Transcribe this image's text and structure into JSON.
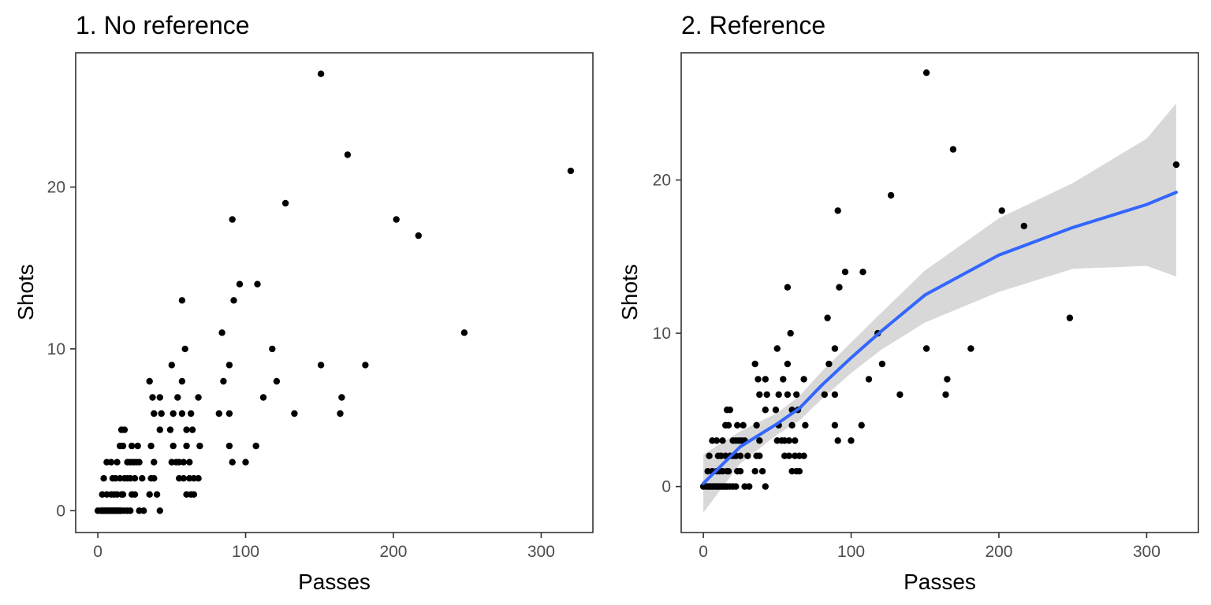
{
  "chart_data": [
    {
      "type": "scatter",
      "title": "1. No reference",
      "xlabel": "Passes",
      "ylabel": "Shots",
      "xlim": [
        -15,
        335
      ],
      "ylim": [
        -1.35,
        28.3
      ],
      "xticks": [
        0,
        100,
        200,
        300
      ],
      "yticks": [
        0,
        10,
        20
      ],
      "grid": false,
      "colors": {
        "points": "#000000",
        "panel_border": "#333333",
        "ticks": "#4d4d4d"
      },
      "points": [
        [
          0,
          0
        ],
        [
          2,
          0
        ],
        [
          3,
          0
        ],
        [
          4,
          0
        ],
        [
          5,
          0
        ],
        [
          6,
          0
        ],
        [
          7,
          0
        ],
        [
          8,
          0
        ],
        [
          9,
          0
        ],
        [
          10,
          0
        ],
        [
          11,
          0
        ],
        [
          12,
          0
        ],
        [
          13,
          0
        ],
        [
          14,
          0
        ],
        [
          15,
          0
        ],
        [
          16,
          0
        ],
        [
          18,
          0
        ],
        [
          20,
          0
        ],
        [
          22,
          0
        ],
        [
          28,
          0
        ],
        [
          31,
          0
        ],
        [
          42,
          0
        ],
        [
          3,
          1
        ],
        [
          6,
          1
        ],
        [
          9,
          1
        ],
        [
          11,
          1
        ],
        [
          13,
          1
        ],
        [
          16,
          1
        ],
        [
          17,
          1
        ],
        [
          23,
          1
        ],
        [
          25,
          1
        ],
        [
          35,
          1
        ],
        [
          40,
          1
        ],
        [
          60,
          1
        ],
        [
          63,
          1
        ],
        [
          65,
          1
        ],
        [
          4,
          2
        ],
        [
          10,
          2
        ],
        [
          12,
          2
        ],
        [
          15,
          2
        ],
        [
          18,
          2
        ],
        [
          20,
          2
        ],
        [
          22,
          2
        ],
        [
          25,
          2
        ],
        [
          30,
          2
        ],
        [
          36,
          2
        ],
        [
          38,
          2
        ],
        [
          55,
          2
        ],
        [
          58,
          2
        ],
        [
          62,
          2
        ],
        [
          65,
          2
        ],
        [
          68,
          2
        ],
        [
          6,
          3
        ],
        [
          9,
          3
        ],
        [
          13,
          3
        ],
        [
          20,
          3
        ],
        [
          22,
          3
        ],
        [
          24,
          3
        ],
        [
          26,
          3
        ],
        [
          28,
          3
        ],
        [
          38,
          3
        ],
        [
          50,
          3
        ],
        [
          53,
          3
        ],
        [
          55,
          3
        ],
        [
          58,
          3
        ],
        [
          62,
          3
        ],
        [
          91,
          3
        ],
        [
          100,
          3
        ],
        [
          15,
          4
        ],
        [
          17,
          4
        ],
        [
          23,
          4
        ],
        [
          27,
          4
        ],
        [
          36,
          4
        ],
        [
          51,
          4
        ],
        [
          60,
          4
        ],
        [
          69,
          4
        ],
        [
          89,
          4
        ],
        [
          107,
          4
        ],
        [
          16,
          5
        ],
        [
          18,
          5
        ],
        [
          42,
          5
        ],
        [
          49,
          5
        ],
        [
          60,
          5
        ],
        [
          64,
          5
        ],
        [
          38,
          6
        ],
        [
          43,
          6
        ],
        [
          51,
          6
        ],
        [
          57,
          6
        ],
        [
          63,
          6
        ],
        [
          82,
          6
        ],
        [
          89,
          6
        ],
        [
          133,
          6
        ],
        [
          164,
          6
        ],
        [
          37,
          7
        ],
        [
          42,
          7
        ],
        [
          54,
          7
        ],
        [
          68,
          7
        ],
        [
          112,
          7
        ],
        [
          165,
          7
        ],
        [
          35,
          8
        ],
        [
          57,
          8
        ],
        [
          85,
          8
        ],
        [
          121,
          8
        ],
        [
          50,
          9
        ],
        [
          89,
          9
        ],
        [
          151,
          9
        ],
        [
          181,
          9
        ],
        [
          59,
          10
        ],
        [
          118,
          10
        ],
        [
          84,
          11
        ],
        [
          248,
          11
        ],
        [
          57,
          13
        ],
        [
          92,
          13
        ],
        [
          96,
          14
        ],
        [
          108,
          14
        ],
        [
          91,
          18
        ],
        [
          202,
          18
        ],
        [
          217,
          17
        ],
        [
          127,
          19
        ],
        [
          320,
          21
        ],
        [
          169,
          22
        ],
        [
          151,
          27
        ]
      ]
    },
    {
      "type": "scatter",
      "title": "2. Reference",
      "xlabel": "Passes",
      "ylabel": "Shots",
      "xlim": [
        -15,
        335
      ],
      "ylim": [
        -3,
        28.3
      ],
      "xticks": [
        0,
        100,
        200,
        300
      ],
      "yticks": [
        0,
        10,
        20
      ],
      "grid": false,
      "colors": {
        "points": "#000000",
        "smooth_line": "#3366ff",
        "confidence_band": "#d6d6d6",
        "panel_border": "#333333",
        "ticks": "#4d4d4d"
      },
      "points": [
        [
          0,
          0
        ],
        [
          2,
          0
        ],
        [
          3,
          0
        ],
        [
          4,
          0
        ],
        [
          5,
          0
        ],
        [
          6,
          0
        ],
        [
          7,
          0
        ],
        [
          8,
          0
        ],
        [
          9,
          0
        ],
        [
          10,
          0
        ],
        [
          11,
          0
        ],
        [
          12,
          0
        ],
        [
          13,
          0
        ],
        [
          14,
          0
        ],
        [
          15,
          0
        ],
        [
          16,
          0
        ],
        [
          18,
          0
        ],
        [
          20,
          0
        ],
        [
          22,
          0
        ],
        [
          28,
          0
        ],
        [
          31,
          0
        ],
        [
          42,
          0
        ],
        [
          3,
          1
        ],
        [
          6,
          1
        ],
        [
          9,
          1
        ],
        [
          11,
          1
        ],
        [
          13,
          1
        ],
        [
          16,
          1
        ],
        [
          17,
          1
        ],
        [
          23,
          1
        ],
        [
          25,
          1
        ],
        [
          35,
          1
        ],
        [
          40,
          1
        ],
        [
          60,
          1
        ],
        [
          63,
          1
        ],
        [
          65,
          1
        ],
        [
          4,
          2
        ],
        [
          10,
          2
        ],
        [
          12,
          2
        ],
        [
          15,
          2
        ],
        [
          18,
          2
        ],
        [
          20,
          2
        ],
        [
          22,
          2
        ],
        [
          25,
          2
        ],
        [
          30,
          2
        ],
        [
          36,
          2
        ],
        [
          38,
          2
        ],
        [
          55,
          2
        ],
        [
          58,
          2
        ],
        [
          62,
          2
        ],
        [
          65,
          2
        ],
        [
          68,
          2
        ],
        [
          6,
          3
        ],
        [
          9,
          3
        ],
        [
          13,
          3
        ],
        [
          20,
          3
        ],
        [
          22,
          3
        ],
        [
          24,
          3
        ],
        [
          26,
          3
        ],
        [
          28,
          3
        ],
        [
          38,
          3
        ],
        [
          50,
          3
        ],
        [
          53,
          3
        ],
        [
          55,
          3
        ],
        [
          58,
          3
        ],
        [
          62,
          3
        ],
        [
          91,
          3
        ],
        [
          100,
          3
        ],
        [
          15,
          4
        ],
        [
          17,
          4
        ],
        [
          23,
          4
        ],
        [
          27,
          4
        ],
        [
          36,
          4
        ],
        [
          51,
          4
        ],
        [
          60,
          4
        ],
        [
          69,
          4
        ],
        [
          89,
          4
        ],
        [
          107,
          4
        ],
        [
          16,
          5
        ],
        [
          18,
          5
        ],
        [
          42,
          5
        ],
        [
          49,
          5
        ],
        [
          60,
          5
        ],
        [
          64,
          5
        ],
        [
          38,
          6
        ],
        [
          43,
          6
        ],
        [
          51,
          6
        ],
        [
          57,
          6
        ],
        [
          63,
          6
        ],
        [
          82,
          6
        ],
        [
          89,
          6
        ],
        [
          133,
          6
        ],
        [
          164,
          6
        ],
        [
          37,
          7
        ],
        [
          42,
          7
        ],
        [
          54,
          7
        ],
        [
          68,
          7
        ],
        [
          112,
          7
        ],
        [
          165,
          7
        ],
        [
          35,
          8
        ],
        [
          57,
          8
        ],
        [
          85,
          8
        ],
        [
          121,
          8
        ],
        [
          50,
          9
        ],
        [
          89,
          9
        ],
        [
          151,
          9
        ],
        [
          181,
          9
        ],
        [
          59,
          10
        ],
        [
          118,
          10
        ],
        [
          84,
          11
        ],
        [
          248,
          11
        ],
        [
          57,
          13
        ],
        [
          92,
          13
        ],
        [
          96,
          14
        ],
        [
          108,
          14
        ],
        [
          91,
          18
        ],
        [
          202,
          18
        ],
        [
          217,
          17
        ],
        [
          127,
          19
        ],
        [
          320,
          21
        ],
        [
          169,
          22
        ],
        [
          151,
          27
        ]
      ],
      "smooth": {
        "x": [
          0,
          25,
          50,
          65,
          80,
          100,
          120,
          150,
          200,
          250,
          300,
          320
        ],
        "y": [
          0.2,
          2.6,
          4.1,
          5.1,
          6.6,
          8.4,
          10.1,
          12.5,
          15.1,
          16.9,
          18.4,
          19.2
        ],
        "lower": [
          -1.7,
          1.5,
          3.4,
          4.3,
          5.7,
          7.4,
          8.9,
          10.7,
          12.7,
          14.2,
          14.4,
          13.7
        ],
        "upper": [
          2.1,
          3.6,
          4.8,
          5.9,
          7.5,
          9.4,
          11.3,
          14.1,
          17.5,
          19.8,
          22.7,
          25.0
        ]
      }
    }
  ]
}
